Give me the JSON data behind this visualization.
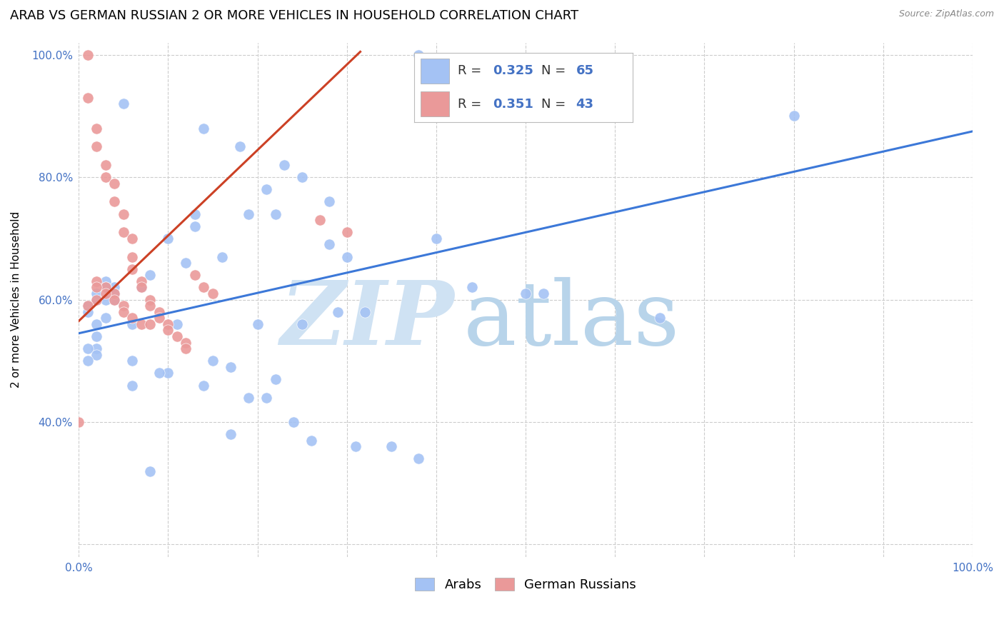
{
  "title": "ARAB VS GERMAN RUSSIAN 2 OR MORE VEHICLES IN HOUSEHOLD CORRELATION CHART",
  "source": "Source: ZipAtlas.com",
  "ylabel": "2 or more Vehicles in Household",
  "watermark_zip": "ZIP",
  "watermark_atlas": "atlas",
  "legend_blue_R": "0.325",
  "legend_blue_N": "65",
  "legend_pink_R": "0.351",
  "legend_pink_N": "43",
  "legend_label_blue": "Arabs",
  "legend_label_pink": "German Russians",
  "xlim": [
    0.0,
    1.0
  ],
  "ylim": [
    0.18,
    1.02
  ],
  "xticks": [
    0.0,
    0.1,
    0.2,
    0.3,
    0.4,
    0.5,
    0.6,
    0.7,
    0.8,
    0.9,
    1.0
  ],
  "yticks": [
    0.2,
    0.4,
    0.6,
    0.8,
    1.0
  ],
  "xticklabels": [
    "0.0%",
    "",
    "",
    "",
    "",
    "",
    "",
    "",
    "",
    "",
    "100.0%"
  ],
  "yticklabels": [
    "",
    "40.0%",
    "60.0%",
    "80.0%",
    "100.0%"
  ],
  "blue_scatter_x": [
    0.38,
    0.02,
    0.14,
    0.05,
    0.18,
    0.23,
    0.02,
    0.06,
    0.08,
    0.13,
    0.04,
    0.21,
    0.25,
    0.22,
    0.28,
    0.1,
    0.16,
    0.04,
    0.12,
    0.07,
    0.03,
    0.03,
    0.04,
    0.02,
    0.03,
    0.01,
    0.01,
    0.03,
    0.02,
    0.01,
    0.02,
    0.01,
    0.13,
    0.19,
    0.28,
    0.3,
    0.4,
    0.44,
    0.5,
    0.52,
    0.65,
    0.8,
    0.02,
    0.06,
    0.11,
    0.14,
    0.2,
    0.25,
    0.29,
    0.32,
    0.1,
    0.22,
    0.19,
    0.24,
    0.17,
    0.31,
    0.35,
    0.38,
    0.08,
    0.26,
    0.15,
    0.09,
    0.06,
    0.21,
    0.17
  ],
  "blue_scatter_y": [
    1.0,
    0.6,
    0.88,
    0.92,
    0.85,
    0.82,
    0.52,
    0.5,
    0.64,
    0.74,
    0.6,
    0.78,
    0.8,
    0.74,
    0.76,
    0.7,
    0.67,
    0.62,
    0.66,
    0.62,
    0.63,
    0.62,
    0.61,
    0.61,
    0.6,
    0.59,
    0.58,
    0.57,
    0.56,
    0.52,
    0.51,
    0.5,
    0.72,
    0.74,
    0.69,
    0.67,
    0.7,
    0.62,
    0.61,
    0.61,
    0.57,
    0.9,
    0.54,
    0.56,
    0.56,
    0.46,
    0.56,
    0.56,
    0.58,
    0.58,
    0.48,
    0.47,
    0.44,
    0.4,
    0.38,
    0.36,
    0.36,
    0.34,
    0.32,
    0.37,
    0.5,
    0.48,
    0.46,
    0.44,
    0.49
  ],
  "pink_scatter_x": [
    0.01,
    0.01,
    0.02,
    0.02,
    0.03,
    0.03,
    0.04,
    0.04,
    0.05,
    0.05,
    0.06,
    0.06,
    0.06,
    0.07,
    0.07,
    0.08,
    0.08,
    0.09,
    0.09,
    0.1,
    0.1,
    0.11,
    0.12,
    0.12,
    0.03,
    0.04,
    0.04,
    0.05,
    0.0,
    0.27,
    0.3,
    0.13,
    0.14,
    0.15,
    0.03,
    0.05,
    0.06,
    0.07,
    0.08,
    0.02,
    0.02,
    0.02,
    0.01
  ],
  "pink_scatter_y": [
    1.0,
    0.93,
    0.88,
    0.85,
    0.82,
    0.8,
    0.79,
    0.76,
    0.74,
    0.71,
    0.7,
    0.67,
    0.65,
    0.63,
    0.62,
    0.6,
    0.59,
    0.58,
    0.57,
    0.56,
    0.55,
    0.54,
    0.53,
    0.52,
    0.62,
    0.61,
    0.6,
    0.59,
    0.4,
    0.73,
    0.71,
    0.64,
    0.62,
    0.61,
    0.61,
    0.58,
    0.57,
    0.56,
    0.56,
    0.63,
    0.62,
    0.6,
    0.59
  ],
  "blue_line_x": [
    0.0,
    1.0
  ],
  "blue_line_y": [
    0.545,
    0.875
  ],
  "pink_line_x": [
    0.0,
    0.315
  ],
  "pink_line_y": [
    0.565,
    1.005
  ],
  "blue_color": "#a4c2f4",
  "pink_color": "#ea9999",
  "blue_scatter_edge": "white",
  "pink_scatter_edge": "white",
  "blue_line_color": "#3c78d8",
  "pink_line_color": "#cc4125",
  "grid_color": "#cccccc",
  "watermark_color": "#cfe2f3",
  "title_fontsize": 13,
  "axis_label_fontsize": 11,
  "tick_fontsize": 11,
  "scatter_size": 120
}
